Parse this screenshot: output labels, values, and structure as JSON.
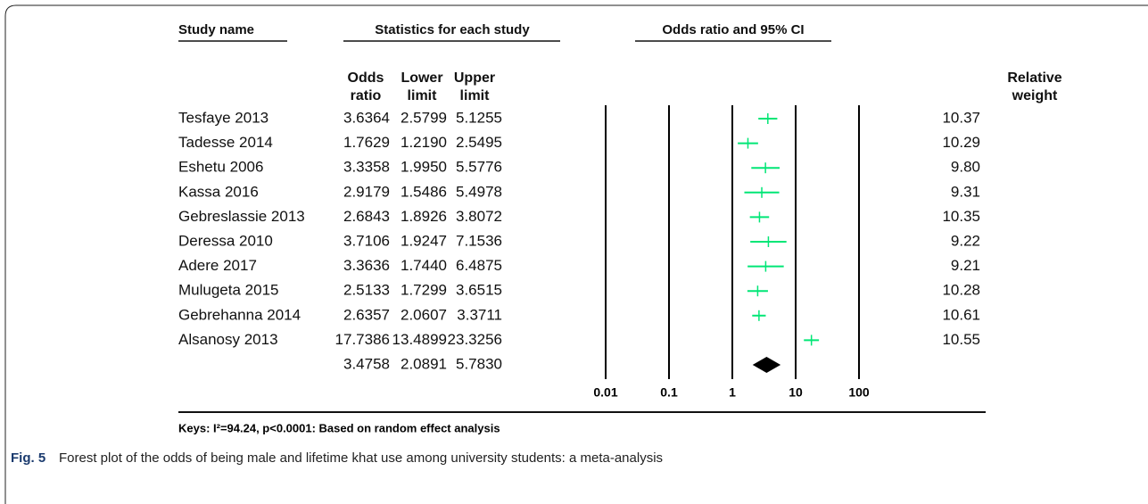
{
  "chart_data": {
    "type": "forest",
    "headers": {
      "study": "Study name",
      "statistics": "Statistics for each study",
      "plot": "Odds ratio and 95% CI"
    },
    "categories": [
      "Tesfaye 2013",
      "Tadesse 2014",
      "Eshetu 2006",
      "Kassa 2016",
      "Gebreslassie 2013",
      "Deressa 2010",
      "Adere 2017",
      "Mulugeta 2015",
      "Gebrehanna 2014",
      "Alsanosy 2013",
      null
    ],
    "series": [
      {
        "name": "Odds ratio",
        "values": [
          3.6364,
          1.7629,
          3.3358,
          2.9179,
          2.6843,
          3.7106,
          3.3636,
          2.5133,
          2.6357,
          17.7386,
          3.4758
        ],
        "value_labels": [
          "3.6364",
          "1.7629",
          "3.3358",
          "2.9179",
          "2.6843",
          "3.7106",
          "3.3636",
          "2.5133",
          "2.6357",
          "17.7386",
          "3.4758"
        ]
      },
      {
        "name": "Lower limit",
        "values": [
          2.5799,
          1.219,
          1.995,
          1.5486,
          1.8926,
          1.9247,
          1.744,
          1.7299,
          2.0607,
          13.4899,
          2.0891
        ],
        "value_labels": [
          "2.5799",
          "1.2190",
          "1.9950",
          "1.5486",
          "1.8926",
          "1.9247",
          "1.7440",
          "1.7299",
          "2.0607",
          "13.4899",
          "2.0891"
        ]
      },
      {
        "name": "Upper limit",
        "values": [
          5.1255,
          2.5495,
          5.5776,
          5.4978,
          3.8072,
          7.1536,
          6.4875,
          3.6515,
          3.3711,
          23.3256,
          5.783
        ],
        "value_labels": [
          "5.1255",
          "2.5495",
          "5.5776",
          "5.4978",
          "3.8072",
          "7.1536",
          "6.4875",
          "3.6515",
          "3.3711",
          "23.3256",
          "5.7830"
        ]
      }
    ],
    "weights": {
      "name": "Relative weight",
      "values": [
        10.37,
        10.29,
        9.8,
        9.31,
        10.35,
        9.22,
        9.21,
        10.28,
        10.61,
        10.55,
        null
      ],
      "value_labels": [
        "10.37",
        "10.29",
        "9.80",
        "9.31",
        "10.35",
        "9.22",
        "9.21",
        "10.28",
        "10.61",
        "10.55",
        null
      ]
    },
    "color": "#00e676",
    "summary_color": "#000000",
    "xscale": "log",
    "xlim": [
      0.01,
      100
    ],
    "xticks": [
      0.01,
      0.1,
      1,
      10,
      100
    ],
    "grid": true,
    "keys": "Keys: I²=94.24, p<0.0001: Based on random effect analysis",
    "figure_label": "Fig. 5",
    "caption": "Forest plot of the odds of being male and lifetime khat use among university students: a meta-analysis"
  }
}
